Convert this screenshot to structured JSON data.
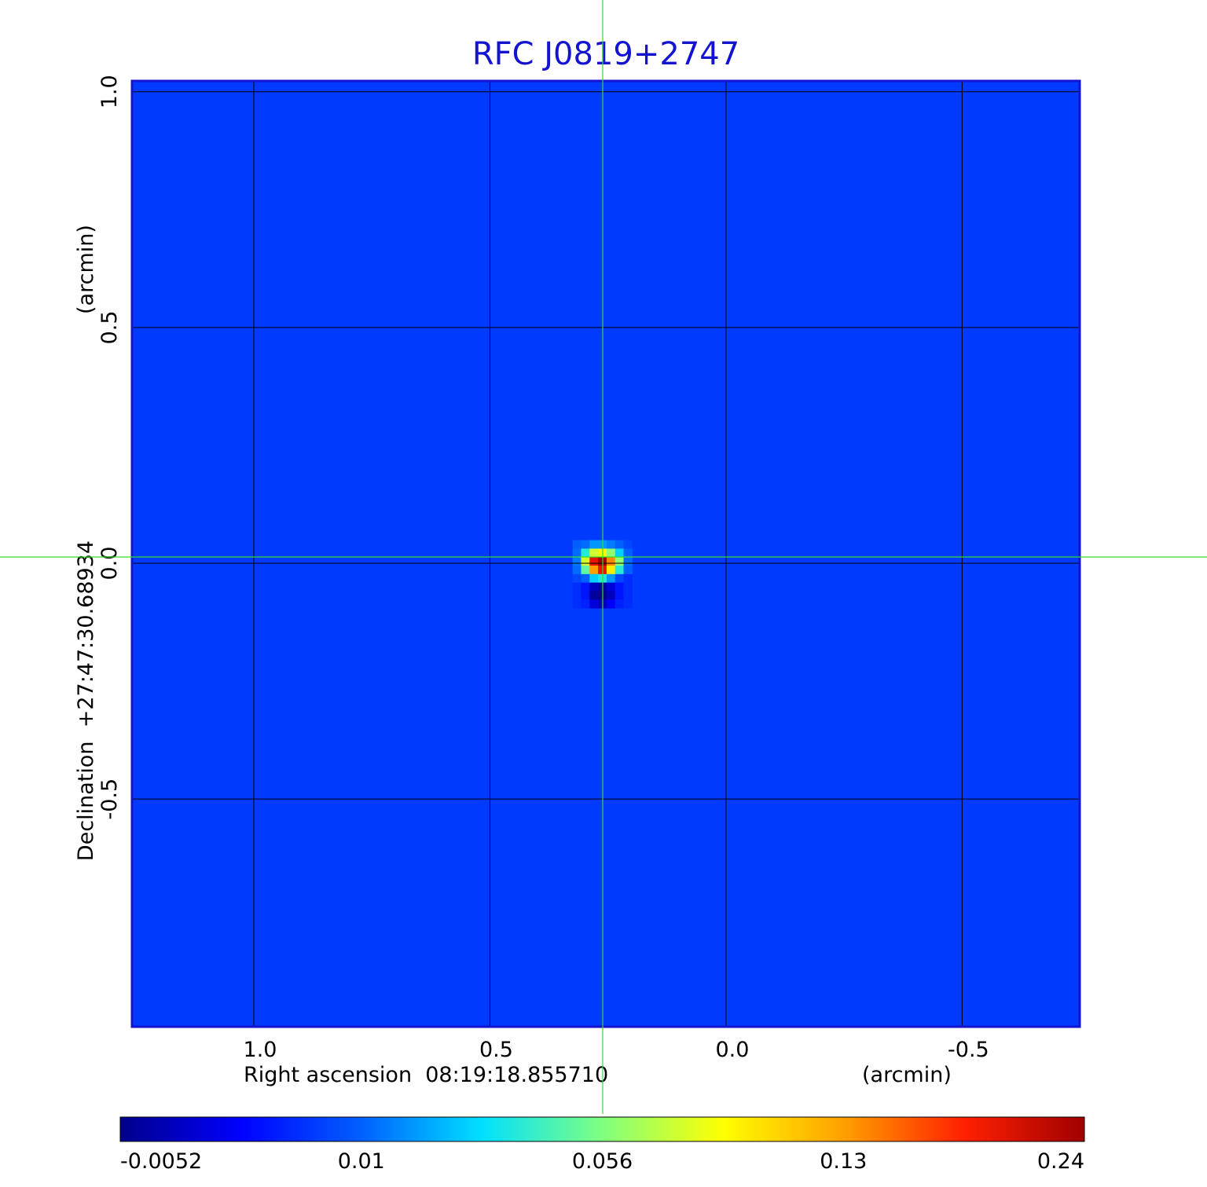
{
  "chart_data": {
    "type": "image",
    "title": "RFC J0819+2747",
    "x_label": "Right ascension  08:19:18.855710",
    "x_unit": "(arcmin)",
    "y_label": "Declination  +27:47:30.68934",
    "y_unit": "(arcmin)",
    "xlim": [
      1.258,
      -0.749
    ],
    "ylim": [
      -0.983,
      1.023
    ],
    "xticks": [
      {
        "value": 1,
        "label": "1.0"
      },
      0.5,
      {
        "value": 0,
        "label": "0.0"
      },
      -0.5
    ],
    "yticks": [
      {
        "value": 1,
        "label": "1.0"
      },
      0.5,
      {
        "value": 0,
        "label": "0.0"
      },
      -0.5
    ],
    "grid": true,
    "frame_color": "#1414d0",
    "background_value": 0.007,
    "pixels": {
      "x": [
        0.316,
        0.298,
        0.28,
        0.262,
        0.244,
        0.226,
        0.208
      ],
      "y": [
        0.04,
        0.022,
        0.004,
        -0.014,
        -0.032,
        -0.05,
        -0.068,
        -0.086
      ],
      "values": [
        [
          0.01,
          0.012,
          0.02,
          0.02,
          0.015,
          0.01,
          0.008
        ],
        [
          0.012,
          0.04,
          0.08,
          0.09,
          0.06,
          0.03,
          0.01
        ],
        [
          0.015,
          0.08,
          0.2,
          0.24,
          0.14,
          0.06,
          0.012
        ],
        [
          0.012,
          0.05,
          0.13,
          0.2,
          0.1,
          0.04,
          0.01
        ],
        [
          0.008,
          0.01,
          0.03,
          0.04,
          0.02,
          0.008,
          0.006
        ],
        [
          0.006,
          0.004,
          -0.002,
          -0.004,
          0.0,
          0.004,
          0.006
        ],
        [
          0.006,
          0.004,
          -0.004,
          -0.0052,
          -0.002,
          0.004,
          0.006
        ],
        [
          0.006,
          0.005,
          0.0,
          -0.002,
          0.002,
          0.005,
          0.006
        ]
      ]
    },
    "clim": [
      -0.0052,
      0.24
    ],
    "cticks": [
      -0.0052,
      0.01,
      0.056,
      0.13,
      0.24
    ],
    "colormap": [
      "#00008b",
      "#0000ff",
      "#0060ff",
      "#00e0ff",
      "#80ff80",
      "#ffff00",
      "#ffa000",
      "#ff2000",
      "#a00000"
    ]
  }
}
